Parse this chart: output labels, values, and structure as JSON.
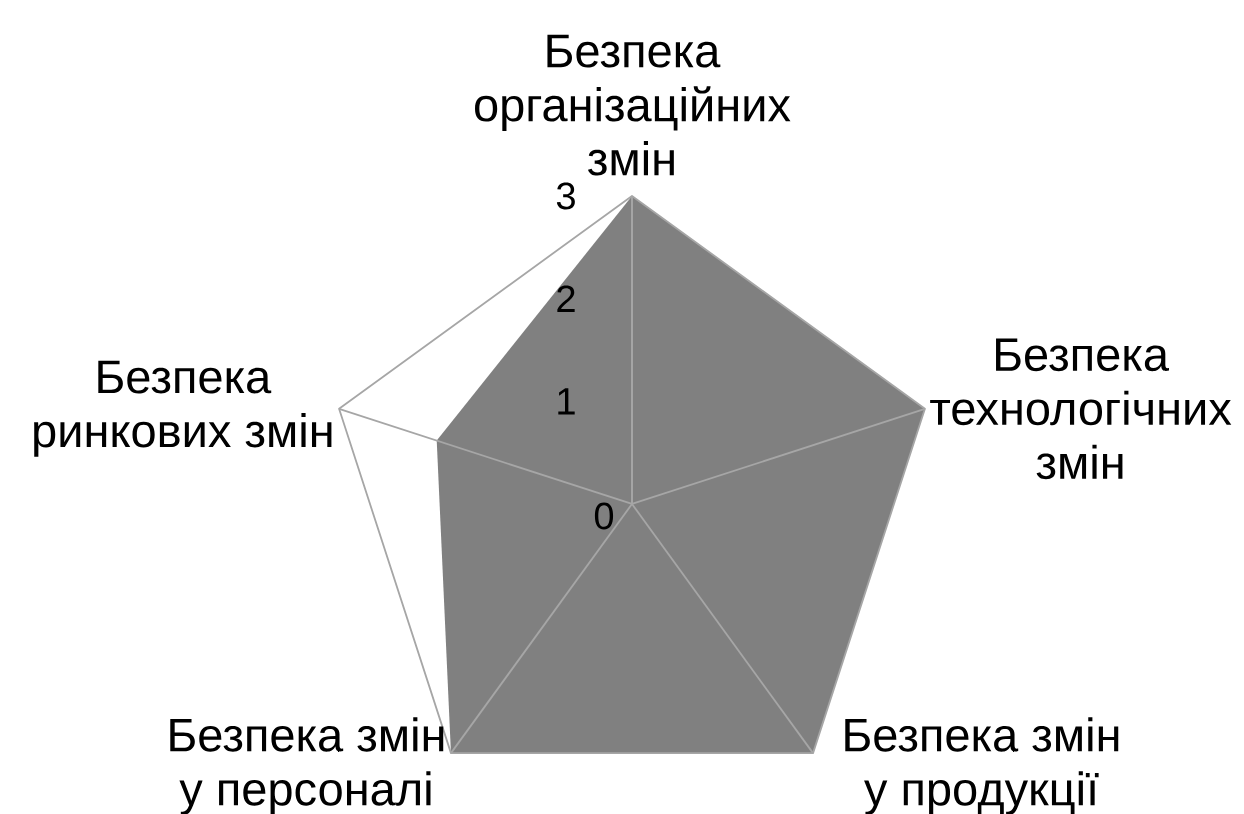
{
  "chart_data": {
    "type": "radar",
    "categories": [
      "Безпека організаційних змін",
      "Безпека технологічних змін",
      "Безпека змін у продукції",
      "Безпека змін у персоналі",
      "Безпека ринкових змін"
    ],
    "series": [
      {
        "color": "#808080",
        "values": [
          3,
          3,
          3,
          3,
          2
        ]
      }
    ],
    "ylim": [
      0,
      3
    ],
    "yticks": [
      0,
      1,
      2,
      3
    ],
    "grid": true
  }
}
